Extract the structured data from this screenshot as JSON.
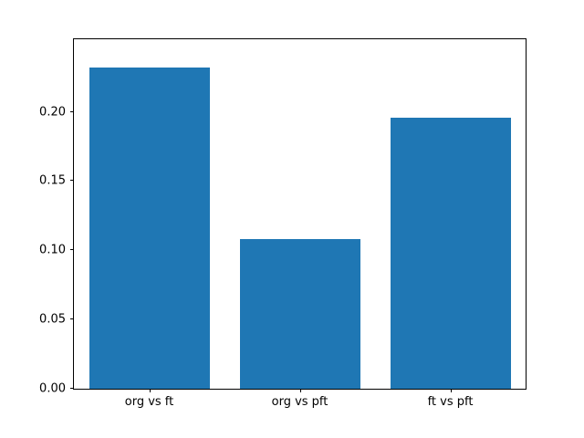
{
  "chart_data": {
    "type": "bar",
    "title": "",
    "xlabel": "",
    "ylabel": "",
    "categories": [
      "org vs ft",
      "org vs pft",
      "ft vs pft"
    ],
    "values": [
      0.232,
      0.108,
      0.196
    ],
    "ylim": [
      0,
      0.2525
    ],
    "yticks": [
      0.0,
      0.05,
      0.1,
      0.15,
      0.2
    ],
    "ytick_labels": [
      "0.00",
      "0.05",
      "0.10",
      "0.15",
      "0.20"
    ],
    "bar_color": "#1f77b4",
    "axis_color": "#000000",
    "background_color": "#ffffff",
    "grid": false,
    "legend": null,
    "bar_width_fraction": 0.8
  }
}
